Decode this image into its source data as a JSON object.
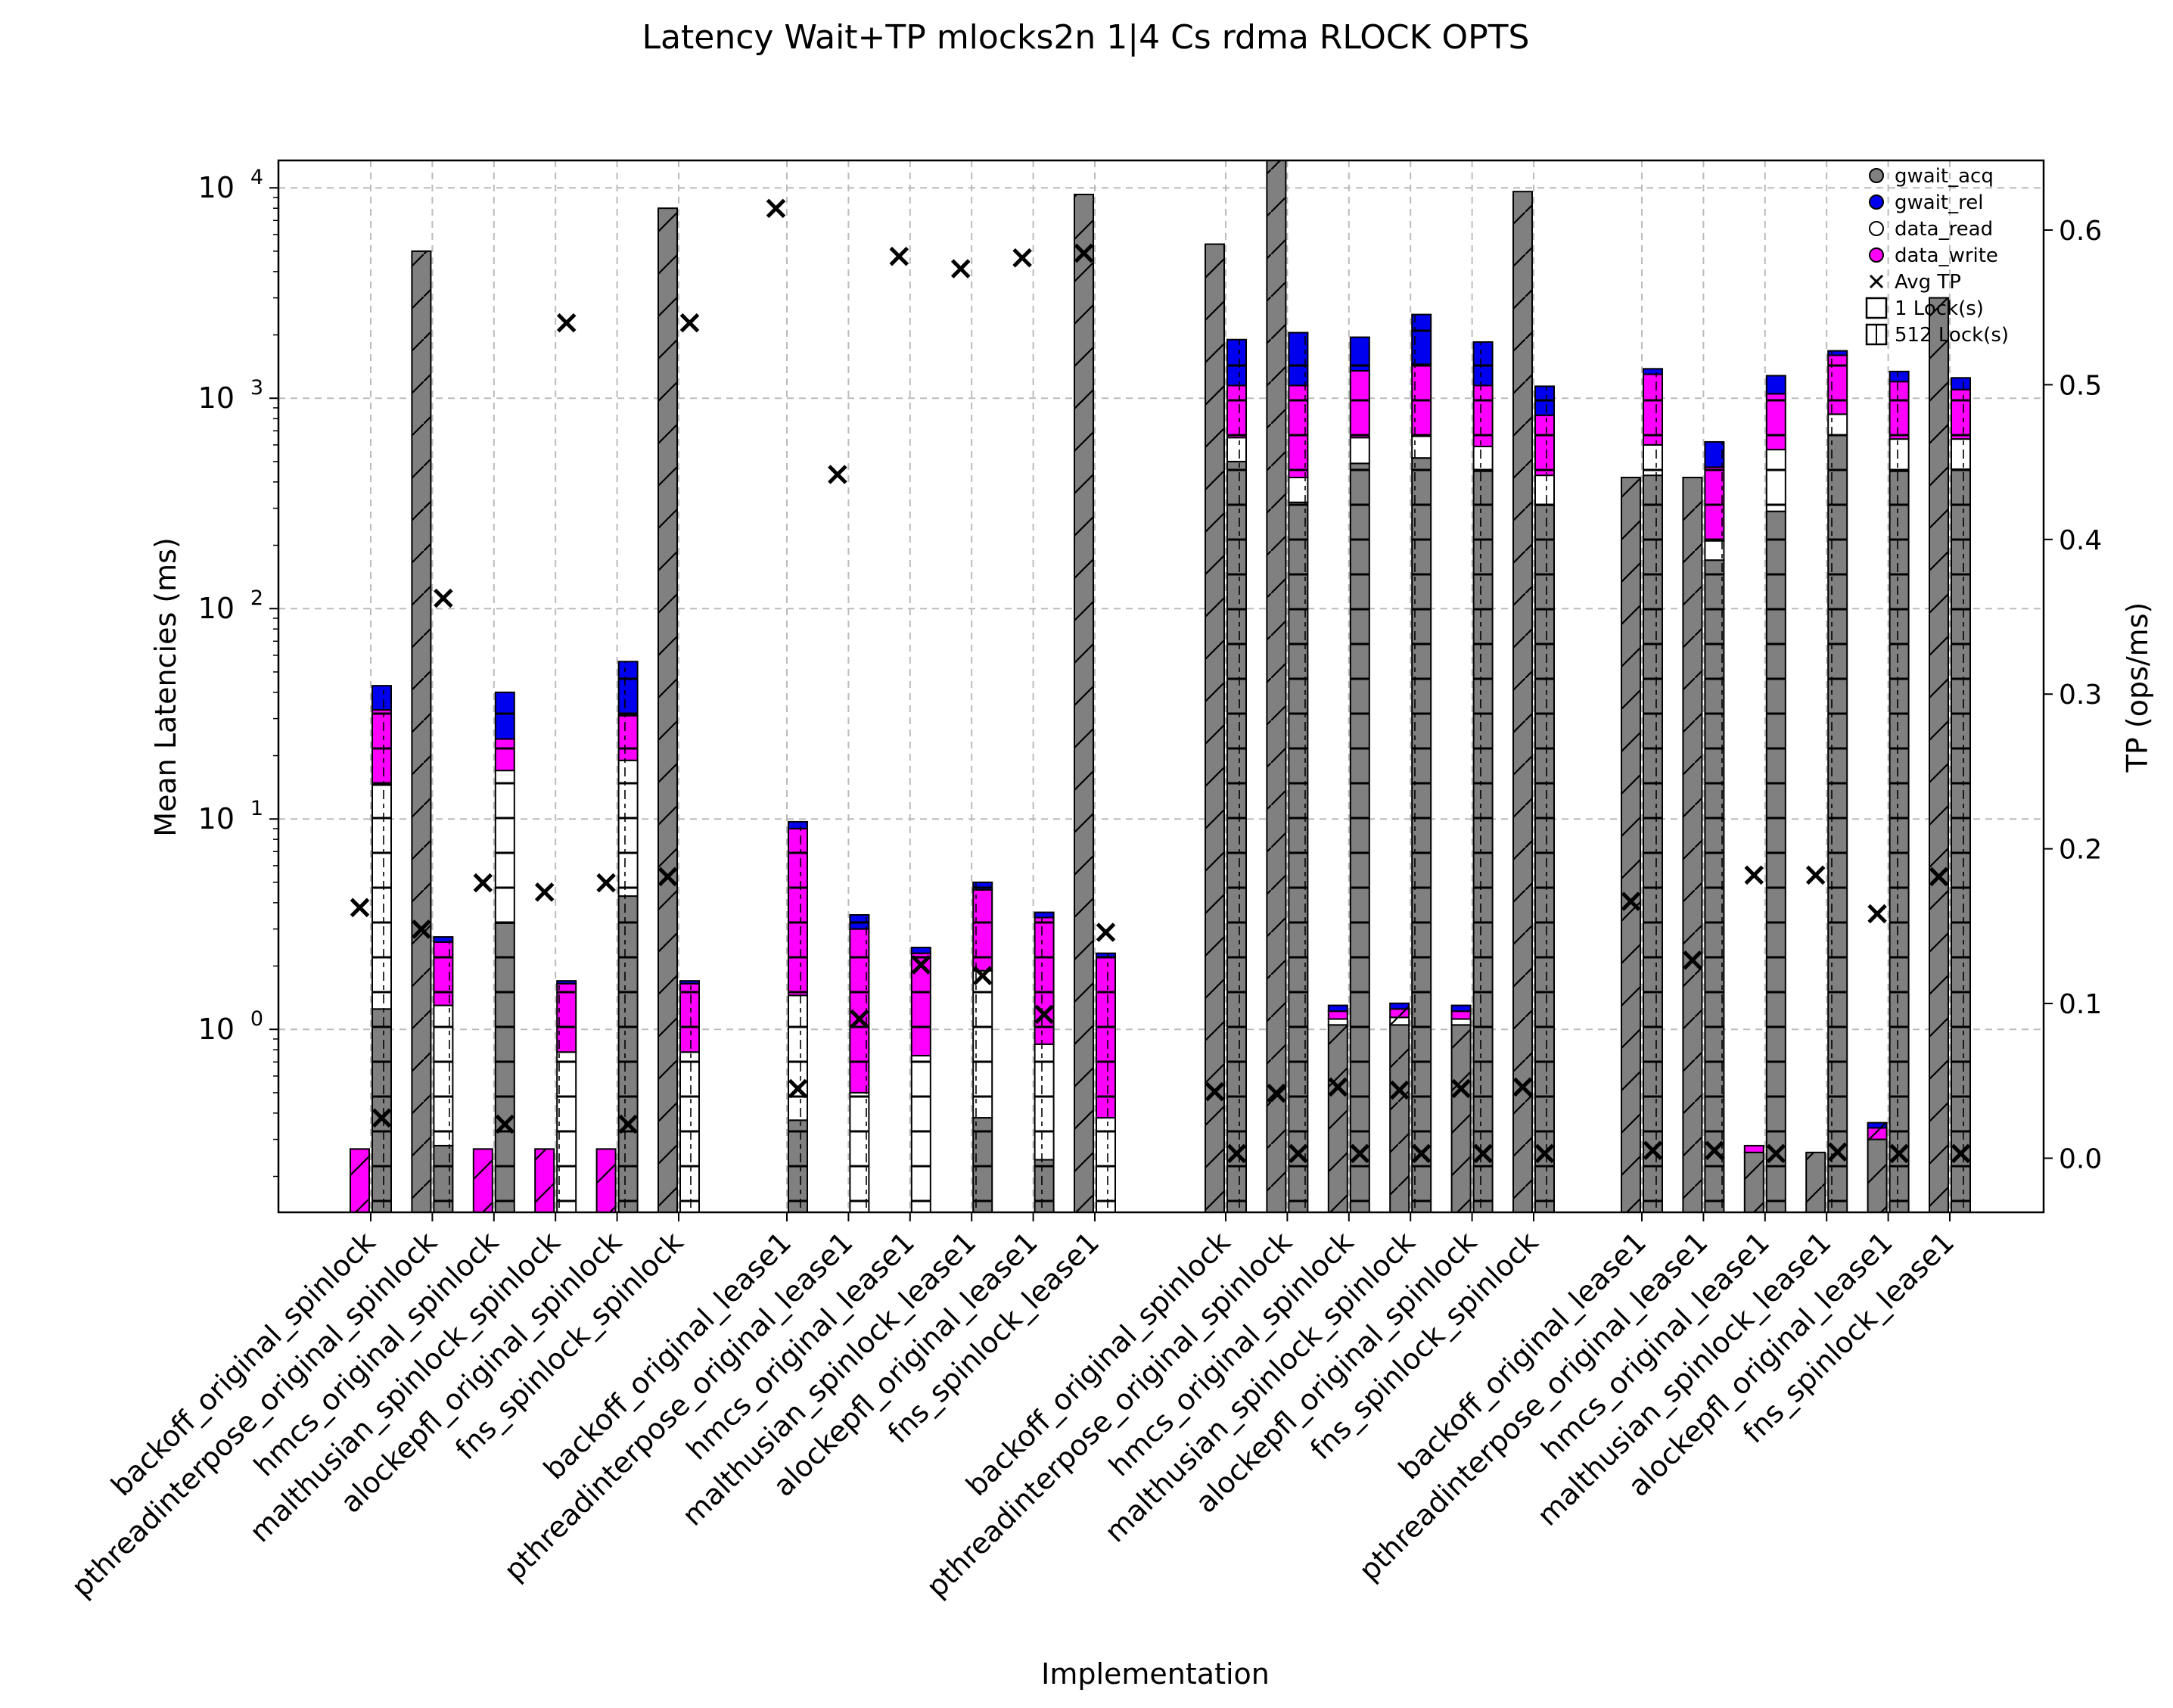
{
  "chart_data": {
    "type": "bar",
    "title": "Latency Wait+TP mlocks2n 1|4 Cs rdma RLOCK OPTS",
    "xlabel": "Implementation",
    "ylabel": "Mean Latencies (ms)",
    "y2label": "TP (ops/ms)",
    "yscale": "log",
    "ylim": [
      0.135,
      13500
    ],
    "y2lim": [
      -0.035,
      0.645
    ],
    "y_ticks": [
      {
        "value": 1,
        "base": "10",
        "exp": "0"
      },
      {
        "value": 10,
        "base": "10",
        "exp": "1"
      },
      {
        "value": 100,
        "base": "10",
        "exp": "2"
      },
      {
        "value": 1000,
        "base": "10",
        "exp": "3"
      },
      {
        "value": 10000,
        "base": "10",
        "exp": "4"
      }
    ],
    "y2_ticks": [
      "0.0",
      "0.1",
      "0.2",
      "0.3",
      "0.4",
      "0.5",
      "0.6"
    ],
    "grid": true,
    "legend_position": "top-right",
    "colors": {
      "gwait_acq": "#808080",
      "gwait_rel": "#0000ee",
      "data_read": "#ffffff",
      "data_write": "#ff00ff",
      "grid": "#bbbbbb"
    },
    "legend": [
      {
        "label": "gwait_acq",
        "kind": "dot",
        "color": "#808080"
      },
      {
        "label": "gwait_rel",
        "kind": "dot",
        "color": "#0000ee"
      },
      {
        "label": "data_read",
        "kind": "dot",
        "color": "#ffffff"
      },
      {
        "label": "data_write",
        "kind": "dot",
        "color": "#ff00ff"
      },
      {
        "label": "Avg TP",
        "kind": "cross",
        "color": "#000000"
      },
      {
        "label": "1 Lock(s)",
        "kind": "box",
        "color": "#ffffff"
      },
      {
        "label": "512 Lock(s)",
        "kind": "hbox",
        "color": "#ffffff"
      }
    ],
    "series_order": [
      "gwait_acq",
      "data_read",
      "data_write",
      "gwait_rel"
    ],
    "categories": [
      "backoff_original_spinlock",
      "pthreadinterpose_original_spinlock",
      "hmcs_original_spinlock",
      "malthusian_spinlock_spinlock",
      "alockepfl_original_spinlock",
      "fns_spinlock_spinlock",
      "backoff_original_lease1",
      "pthreadinterpose_original_lease1",
      "hmcs_original_lease1",
      "malthusian_spinlock_lease1",
      "alockepfl_original_lease1",
      "fns_spinlock_lease1",
      "backoff_original_spinlock",
      "pthreadinterpose_original_spinlock",
      "hmcs_original_spinlock",
      "malthusian_spinlock_spinlock",
      "alockepfl_original_spinlock",
      "fns_spinlock_spinlock",
      "backoff_original_lease1",
      "pthreadinterpose_original_lease1",
      "hmcs_original_lease1",
      "malthusian_spinlock_lease1",
      "alockepfl_original_lease1",
      "fns_spinlock_lease1"
    ],
    "bars": [
      {
        "cat": 0,
        "locks": 1,
        "gwait_acq": 0,
        "data_read": 0,
        "data_write": 0.27,
        "gwait_rel": 0
      },
      {
        "cat": 0,
        "locks": 512,
        "gwait_acq": 1.25,
        "data_read": 14.5,
        "data_write": 33,
        "gwait_rel": 43
      },
      {
        "cat": 1,
        "locks": 1,
        "gwait_acq": 5000,
        "data_read": 5000,
        "data_write": 5000,
        "gwait_rel": 5000
      },
      {
        "cat": 1,
        "locks": 512,
        "gwait_acq": 0.28,
        "data_read": 1.3,
        "data_write": 2.6,
        "gwait_rel": 2.75
      },
      {
        "cat": 2,
        "locks": 1,
        "gwait_acq": 0,
        "data_read": 0,
        "data_write": 0.27,
        "gwait_rel": 0.27
      },
      {
        "cat": 2,
        "locks": 512,
        "gwait_acq": 3.2,
        "data_read": 17,
        "data_write": 24,
        "gwait_rel": 40
      },
      {
        "cat": 3,
        "locks": 1,
        "gwait_acq": 0,
        "data_read": 0,
        "data_write": 0.27,
        "gwait_rel": 0.27
      },
      {
        "cat": 3,
        "locks": 512,
        "gwait_acq": 0,
        "data_read": 0.78,
        "data_write": 1.65,
        "gwait_rel": 1.7
      },
      {
        "cat": 4,
        "locks": 1,
        "gwait_acq": 0,
        "data_read": 0,
        "data_write": 0.27,
        "gwait_rel": 0.27
      },
      {
        "cat": 4,
        "locks": 512,
        "gwait_acq": 4.3,
        "data_read": 19,
        "data_write": 31,
        "gwait_rel": 56
      },
      {
        "cat": 5,
        "locks": 1,
        "gwait_acq": 8000,
        "data_read": 8000,
        "data_write": 8000,
        "gwait_rel": 8000
      },
      {
        "cat": 5,
        "locks": 512,
        "gwait_acq": 0,
        "data_read": 0.78,
        "data_write": 1.65,
        "gwait_rel": 1.7
      },
      {
        "cat": 6,
        "locks": 512,
        "gwait_acq": 0.37,
        "data_read": 1.45,
        "data_write": 9,
        "gwait_rel": 9.7
      },
      {
        "cat": 7,
        "locks": 512,
        "gwait_acq": 0,
        "data_read": 0.5,
        "data_write": 3.0,
        "gwait_rel": 3.5
      },
      {
        "cat": 8,
        "locks": 512,
        "gwait_acq": 0,
        "data_read": 0.75,
        "data_write": 2.3,
        "gwait_rel": 2.45
      },
      {
        "cat": 9,
        "locks": 512,
        "gwait_acq": 0.38,
        "data_read": 1.9,
        "data_write": 4.6,
        "gwait_rel": 5.0
      },
      {
        "cat": 10,
        "locks": 512,
        "gwait_acq": 0.24,
        "data_read": 0.85,
        "data_write": 3.4,
        "gwait_rel": 3.6
      },
      {
        "cat": 11,
        "locks": 1,
        "gwait_acq": 9300,
        "data_read": 9300,
        "data_write": 9300,
        "gwait_rel": 9300
      },
      {
        "cat": 11,
        "locks": 512,
        "gwait_acq": 0,
        "data_read": 0.38,
        "data_write": 2.2,
        "gwait_rel": 2.3
      },
      {
        "cat": 12,
        "locks": 1,
        "gwait_acq": 5400,
        "data_read": 5400,
        "data_write": 5400,
        "gwait_rel": 5400
      },
      {
        "cat": 12,
        "locks": 512,
        "gwait_acq": 500,
        "data_read": 650,
        "data_write": 1150,
        "gwait_rel": 1900
      },
      {
        "cat": 13,
        "locks": 1,
        "gwait_acq": 15000,
        "data_read": 15000,
        "data_write": 15000,
        "gwait_rel": 15000
      },
      {
        "cat": 13,
        "locks": 512,
        "gwait_acq": 320,
        "data_read": 420,
        "data_write": 1150,
        "gwait_rel": 2050
      },
      {
        "cat": 14,
        "locks": 1,
        "gwait_acq": 1.05,
        "data_read": 1.12,
        "data_write": 1.22,
        "gwait_rel": 1.3
      },
      {
        "cat": 14,
        "locks": 512,
        "gwait_acq": 490,
        "data_read": 650,
        "data_write": 1350,
        "gwait_rel": 1950
      },
      {
        "cat": 15,
        "locks": 1,
        "gwait_acq": 1.05,
        "data_read": 1.14,
        "data_write": 1.25,
        "gwait_rel": 1.33
      },
      {
        "cat": 15,
        "locks": 512,
        "gwait_acq": 520,
        "data_read": 660,
        "data_write": 1450,
        "gwait_rel": 2500
      },
      {
        "cat": 16,
        "locks": 1,
        "gwait_acq": 1.05,
        "data_read": 1.12,
        "data_write": 1.22,
        "gwait_rel": 1.3
      },
      {
        "cat": 16,
        "locks": 512,
        "gwait_acq": 450,
        "data_read": 590,
        "data_write": 1150,
        "gwait_rel": 1850
      },
      {
        "cat": 17,
        "locks": 1,
        "gwait_acq": 9600,
        "data_read": 9600,
        "data_write": 9600,
        "gwait_rel": 9600
      },
      {
        "cat": 17,
        "locks": 512,
        "gwait_acq": 310,
        "data_read": 430,
        "data_write": 830,
        "gwait_rel": 1140
      },
      {
        "cat": 18,
        "locks": 1,
        "gwait_acq": 420,
        "data_read": 420,
        "data_write": 420,
        "gwait_rel": 420
      },
      {
        "cat": 18,
        "locks": 512,
        "gwait_acq": 430,
        "data_read": 600,
        "data_write": 1300,
        "gwait_rel": 1380
      },
      {
        "cat": 19,
        "locks": 1,
        "gwait_acq": 420,
        "data_read": 420,
        "data_write": 420,
        "gwait_rel": 420
      },
      {
        "cat": 19,
        "locks": 512,
        "gwait_acq": 170,
        "data_read": 210,
        "data_write": 470,
        "gwait_rel": 620
      },
      {
        "cat": 20,
        "locks": 1,
        "gwait_acq": 0.26,
        "data_read": 0.26,
        "data_write": 0.28,
        "gwait_rel": 0.28
      },
      {
        "cat": 20,
        "locks": 512,
        "gwait_acq": 290,
        "data_read": 570,
        "data_write": 1050,
        "gwait_rel": 1280
      },
      {
        "cat": 21,
        "locks": 1,
        "gwait_acq": 0.26,
        "data_read": 0.26,
        "data_write": 0.26,
        "gwait_rel": 0.26
      },
      {
        "cat": 21,
        "locks": 512,
        "gwait_acq": 670,
        "data_read": 840,
        "data_write": 1600,
        "gwait_rel": 1680
      },
      {
        "cat": 22,
        "locks": 1,
        "gwait_acq": 0.3,
        "data_read": 0.3,
        "data_write": 0.34,
        "gwait_rel": 0.36
      },
      {
        "cat": 22,
        "locks": 512,
        "gwait_acq": 450,
        "data_read": 640,
        "data_write": 1200,
        "gwait_rel": 1340
      },
      {
        "cat": 23,
        "locks": 1,
        "gwait_acq": 3000,
        "data_read": 3000,
        "data_write": 3000,
        "gwait_rel": 3000
      },
      {
        "cat": 23,
        "locks": 512,
        "gwait_acq": 460,
        "data_read": 640,
        "data_write": 1100,
        "gwait_rel": 1250
      }
    ],
    "avg_tp": [
      {
        "cat": 0,
        "locks": 1,
        "value": 0.162
      },
      {
        "cat": 0,
        "locks": 512,
        "value": 0.026
      },
      {
        "cat": 1,
        "locks": 1,
        "value": 0.148
      },
      {
        "cat": 1,
        "locks": 512,
        "value": 0.362
      },
      {
        "cat": 2,
        "locks": 1,
        "value": 0.178
      },
      {
        "cat": 2,
        "locks": 512,
        "value": 0.022
      },
      {
        "cat": 3,
        "locks": 1,
        "value": 0.172
      },
      {
        "cat": 3,
        "locks": 512,
        "value": 0.54
      },
      {
        "cat": 4,
        "locks": 1,
        "value": 0.178
      },
      {
        "cat": 4,
        "locks": 512,
        "value": 0.022
      },
      {
        "cat": 5,
        "locks": 1,
        "value": 0.182
      },
      {
        "cat": 5,
        "locks": 512,
        "value": 0.54
      },
      {
        "cat": 6,
        "locks": 1,
        "value": 0.614
      },
      {
        "cat": 6,
        "locks": 512,
        "value": 0.045
      },
      {
        "cat": 7,
        "locks": 1,
        "value": 0.442
      },
      {
        "cat": 7,
        "locks": 512,
        "value": 0.09
      },
      {
        "cat": 8,
        "locks": 1,
        "value": 0.583
      },
      {
        "cat": 8,
        "locks": 512,
        "value": 0.125
      },
      {
        "cat": 9,
        "locks": 1,
        "value": 0.575
      },
      {
        "cat": 9,
        "locks": 512,
        "value": 0.118
      },
      {
        "cat": 10,
        "locks": 1,
        "value": 0.582
      },
      {
        "cat": 10,
        "locks": 512,
        "value": 0.093
      },
      {
        "cat": 11,
        "locks": 1,
        "value": 0.585
      },
      {
        "cat": 11,
        "locks": 512,
        "value": 0.146
      },
      {
        "cat": 12,
        "locks": 1,
        "value": 0.043
      },
      {
        "cat": 12,
        "locks": 512,
        "value": 0.003
      },
      {
        "cat": 13,
        "locks": 1,
        "value": 0.042
      },
      {
        "cat": 13,
        "locks": 512,
        "value": 0.003
      },
      {
        "cat": 14,
        "locks": 1,
        "value": 0.046
      },
      {
        "cat": 14,
        "locks": 512,
        "value": 0.003
      },
      {
        "cat": 15,
        "locks": 1,
        "value": 0.044
      },
      {
        "cat": 15,
        "locks": 512,
        "value": 0.003
      },
      {
        "cat": 16,
        "locks": 1,
        "value": 0.045
      },
      {
        "cat": 16,
        "locks": 512,
        "value": 0.003
      },
      {
        "cat": 17,
        "locks": 1,
        "value": 0.046
      },
      {
        "cat": 17,
        "locks": 512,
        "value": 0.003
      },
      {
        "cat": 18,
        "locks": 1,
        "value": 0.166
      },
      {
        "cat": 18,
        "locks": 512,
        "value": 0.005
      },
      {
        "cat": 19,
        "locks": 1,
        "value": 0.128
      },
      {
        "cat": 19,
        "locks": 512,
        "value": 0.005
      },
      {
        "cat": 20,
        "locks": 1,
        "value": 0.183
      },
      {
        "cat": 20,
        "locks": 512,
        "value": 0.003
      },
      {
        "cat": 21,
        "locks": 1,
        "value": 0.183
      },
      {
        "cat": 21,
        "locks": 512,
        "value": 0.004
      },
      {
        "cat": 22,
        "locks": 1,
        "value": 0.158
      },
      {
        "cat": 22,
        "locks": 512,
        "value": 0.003
      },
      {
        "cat": 23,
        "locks": 1,
        "value": 0.182
      },
      {
        "cat": 23,
        "locks": 512,
        "value": 0.003
      }
    ]
  }
}
